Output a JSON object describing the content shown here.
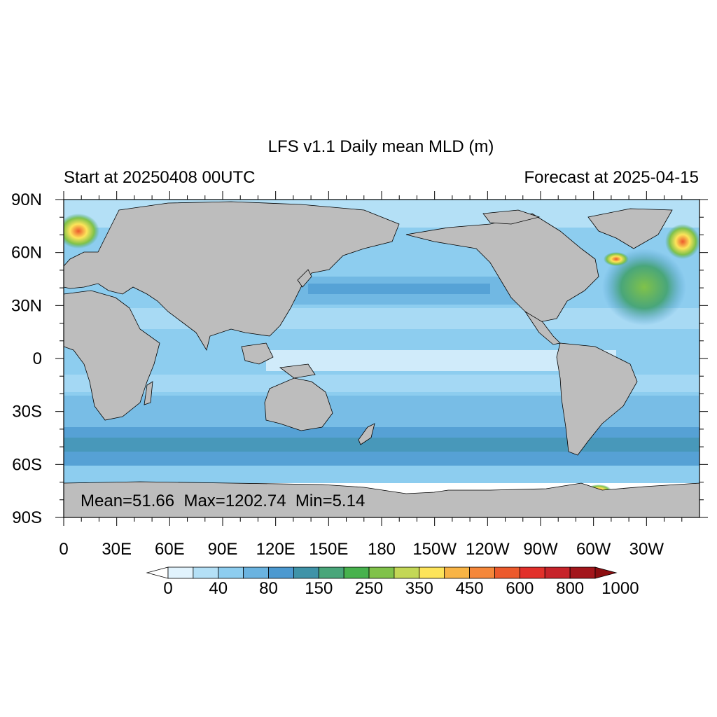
{
  "title": "LFS v1.1 Daily mean MLD (m)",
  "left_subtitle": "Start at 20250408 00UTC",
  "right_subtitle": "Forecast at 2025-04-15",
  "stats_text": "Mean=51.66  Max=1202.74  Min=5.14",
  "map": {
    "projection": "cylindrical equidistant",
    "lon_range": [
      0,
      360
    ],
    "lat_range": [
      -90,
      90
    ],
    "lat_ticks": [
      {
        "value": 90,
        "label": "90N"
      },
      {
        "value": 60,
        "label": "60N"
      },
      {
        "value": 30,
        "label": "30N"
      },
      {
        "value": 0,
        "label": "0"
      },
      {
        "value": -30,
        "label": "30S"
      },
      {
        "value": -60,
        "label": "60S"
      },
      {
        "value": -90,
        "label": "90S"
      }
    ],
    "lon_ticks": [
      {
        "value": 0,
        "label": "0"
      },
      {
        "value": 30,
        "label": "30E"
      },
      {
        "value": 60,
        "label": "60E"
      },
      {
        "value": 90,
        "label": "90E"
      },
      {
        "value": 120,
        "label": "120E"
      },
      {
        "value": 150,
        "label": "150E"
      },
      {
        "value": 180,
        "label": "180"
      },
      {
        "value": 210,
        "label": "150W"
      },
      {
        "value": 240,
        "label": "120W"
      },
      {
        "value": 270,
        "label": "90W"
      },
      {
        "value": 300,
        "label": "60W"
      },
      {
        "value": 330,
        "label": "30W"
      }
    ],
    "land_color": "#bdbdbd",
    "coastline_color": "#000000"
  },
  "colorbar": {
    "labels": [
      "0",
      "40",
      "80",
      "150",
      "250",
      "350",
      "450",
      "600",
      "800",
      "1000"
    ],
    "colors": [
      "#ffffff",
      "#e1f3fd",
      "#b4e0f6",
      "#8dcdef",
      "#6ab3e0",
      "#4c99d0",
      "#3f93a8",
      "#49a67a",
      "#47b24d",
      "#80c24a",
      "#c3d756",
      "#fde45a",
      "#f8b445",
      "#f5873a",
      "#ec5a2c",
      "#e2302a",
      "#c7232a",
      "#a3161b",
      "#8b0d10"
    ]
  }
}
